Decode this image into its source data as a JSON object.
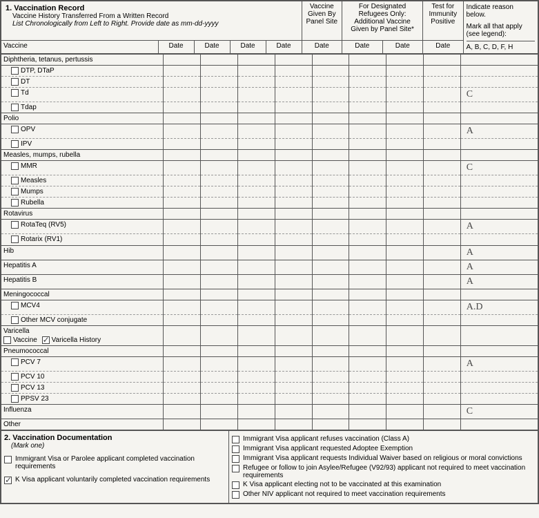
{
  "header": {
    "section_num": "1. Vaccination Record",
    "line2": "Vaccine History Transferred From a Written Record",
    "line3": "List Chronologically from Left to Right.  Provide date as mm-dd-yyyy",
    "col_panel": "Vaccine Given By Panel Site",
    "col_refugee": "For Designated Refugees Only: Additional Vaccine Given by Panel Site*",
    "col_immunity": "Test for Immunity Positive",
    "col_reason1": "Indicate reason below.",
    "col_reason2": "Mark all that apply (see legend):"
  },
  "col_headers": {
    "vaccine": "Vaccine",
    "date": "Date",
    "reason_codes": "A, B, C, D, F, H"
  },
  "groups": [
    {
      "label": "Diphtheria, tetanus, pertussis",
      "reason": "",
      "subs": [
        {
          "label": "DTP, DTaP",
          "reason": ""
        },
        {
          "label": "DT",
          "reason": ""
        },
        {
          "label": "Td",
          "reason": "C"
        },
        {
          "label": "Tdap",
          "reason": ""
        }
      ]
    },
    {
      "label": "Polio",
      "reason": "",
      "subs": [
        {
          "label": "OPV",
          "reason": "A"
        },
        {
          "label": "IPV",
          "reason": ""
        }
      ]
    },
    {
      "label": "Measles, mumps, rubella",
      "reason": "",
      "subs": [
        {
          "label": "MMR",
          "reason": "C"
        },
        {
          "label": "Measles",
          "reason": ""
        },
        {
          "label": "Mumps",
          "reason": ""
        },
        {
          "label": "Rubella",
          "reason": ""
        }
      ]
    },
    {
      "label": "Rotavirus",
      "reason": "",
      "subs": [
        {
          "label": "RotaTeq (RV5)",
          "reason": "A"
        },
        {
          "label": "Rotarix (RV1)",
          "reason": ""
        }
      ]
    },
    {
      "label": "Hib",
      "reason": "A",
      "subs": []
    },
    {
      "label": "Hepatitis A",
      "reason": "A",
      "subs": []
    },
    {
      "label": "Hepatitis B",
      "reason": "A",
      "subs": []
    },
    {
      "label": "Meningococcal",
      "reason": "",
      "subs": [
        {
          "label": "MCV4",
          "reason": "A.D"
        },
        {
          "label": "Other MCV conjugate",
          "reason": ""
        }
      ]
    },
    {
      "label": "Varicella",
      "reason": "",
      "special": "varicella",
      "subs": []
    },
    {
      "label": "Pneumococcal",
      "reason": "",
      "subs": [
        {
          "label": "PCV 7",
          "reason": "A"
        },
        {
          "label": "PCV 10",
          "reason": ""
        },
        {
          "label": "PCV 13",
          "reason": ""
        },
        {
          "label": "PPSV 23",
          "reason": ""
        }
      ]
    },
    {
      "label": "Influenza",
      "reason": "C",
      "subs": []
    },
    {
      "label": "Other",
      "reason": "",
      "subs": []
    }
  ],
  "varicella": {
    "opt1": "Vaccine",
    "opt2": "Varicella History",
    "checked": 2
  },
  "doc": {
    "title": "2. Vaccination Documentation",
    "mark": "(Mark one)",
    "left": [
      {
        "label": "Immigrant Visa or Parolee applicant completed vaccination requirements",
        "checked": false
      },
      {
        "label": "K Visa applicant voluntarily completed vaccination requirements",
        "checked": true
      }
    ],
    "right": [
      {
        "label": "Immigrant Visa applicant refuses vaccination (Class A)",
        "checked": false
      },
      {
        "label": "Immigrant Visa applicant requested Adoptee Exemption",
        "checked": false
      },
      {
        "label": "Immigrant Visa applicant requests Individual Waiver based on religious or moral convictions",
        "checked": false
      },
      {
        "label": "Refugee or follow to join Asylee/Refugee (V92/93) applicant not required to meet vaccination requirements",
        "checked": false
      },
      {
        "label": "K Visa applicant electing not to be vaccinated at this examination",
        "checked": false
      },
      {
        "label": "Other NIV applicant not required to meet vaccination requirements",
        "checked": false
      }
    ]
  }
}
